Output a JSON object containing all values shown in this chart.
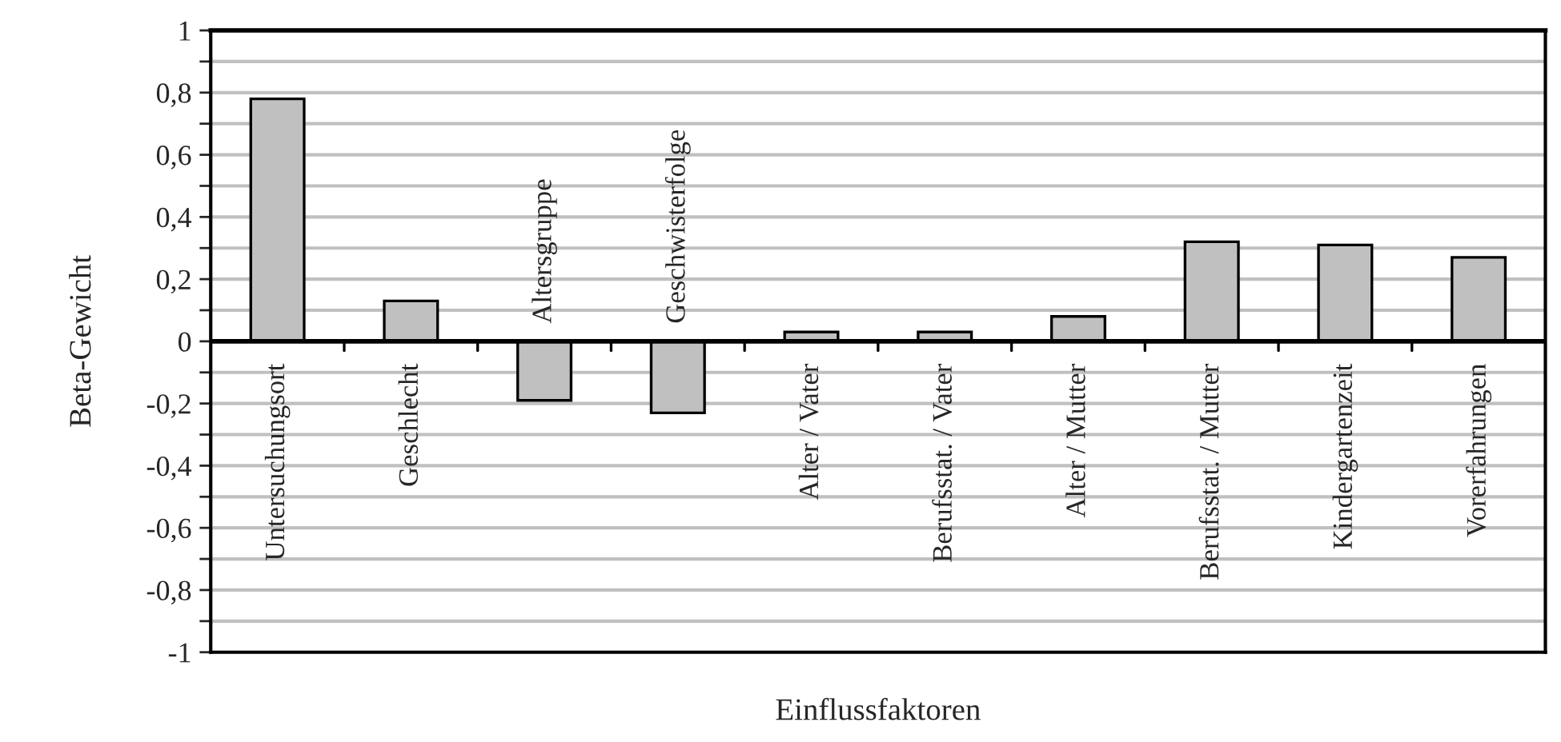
{
  "chart_data": {
    "type": "bar",
    "xlabel": "Einflussfaktoren",
    "ylabel": "Beta-Gewicht",
    "categories": [
      "Untersuchungsort",
      "Geschlecht",
      "Altersgruppe",
      "Geschwisterfolge",
      "Alter / Vater",
      "Berufsstat. / Vater",
      "Alter / Mutter",
      "Berufsstat. / Mutter",
      "Kindergartenzeit",
      "Vorerfahrungen"
    ],
    "values": [
      0.78,
      0.13,
      -0.19,
      -0.23,
      0.03,
      0.03,
      0.08,
      0.32,
      0.31,
      0.27
    ],
    "color": "#c0c0c0",
    "ylim": [
      -1,
      1
    ],
    "yticks": [
      {
        "value": -1,
        "label": "-1"
      },
      {
        "value": -0.9,
        "label": null
      },
      {
        "value": -0.8,
        "label": "-0,8"
      },
      {
        "value": -0.7,
        "label": null
      },
      {
        "value": -0.6,
        "label": "-0,6"
      },
      {
        "value": -0.5,
        "label": null
      },
      {
        "value": -0.4,
        "label": "-0,4"
      },
      {
        "value": -0.3,
        "label": null
      },
      {
        "value": -0.2,
        "label": "-0,2"
      },
      {
        "value": -0.1,
        "label": null
      },
      {
        "value": 0,
        "label": "0"
      },
      {
        "value": 0.1,
        "label": null
      },
      {
        "value": 0.2,
        "label": "0,2"
      },
      {
        "value": 0.3,
        "label": null
      },
      {
        "value": 0.4,
        "label": "0,4"
      },
      {
        "value": 0.5,
        "label": null
      },
      {
        "value": 0.6,
        "label": "0,6"
      },
      {
        "value": 0.7,
        "label": null
      },
      {
        "value": 0.8,
        "label": "0,8"
      },
      {
        "value": 0.9,
        "label": null
      },
      {
        "value": 1,
        "label": "1"
      }
    ],
    "grid": "y",
    "legend": false
  }
}
